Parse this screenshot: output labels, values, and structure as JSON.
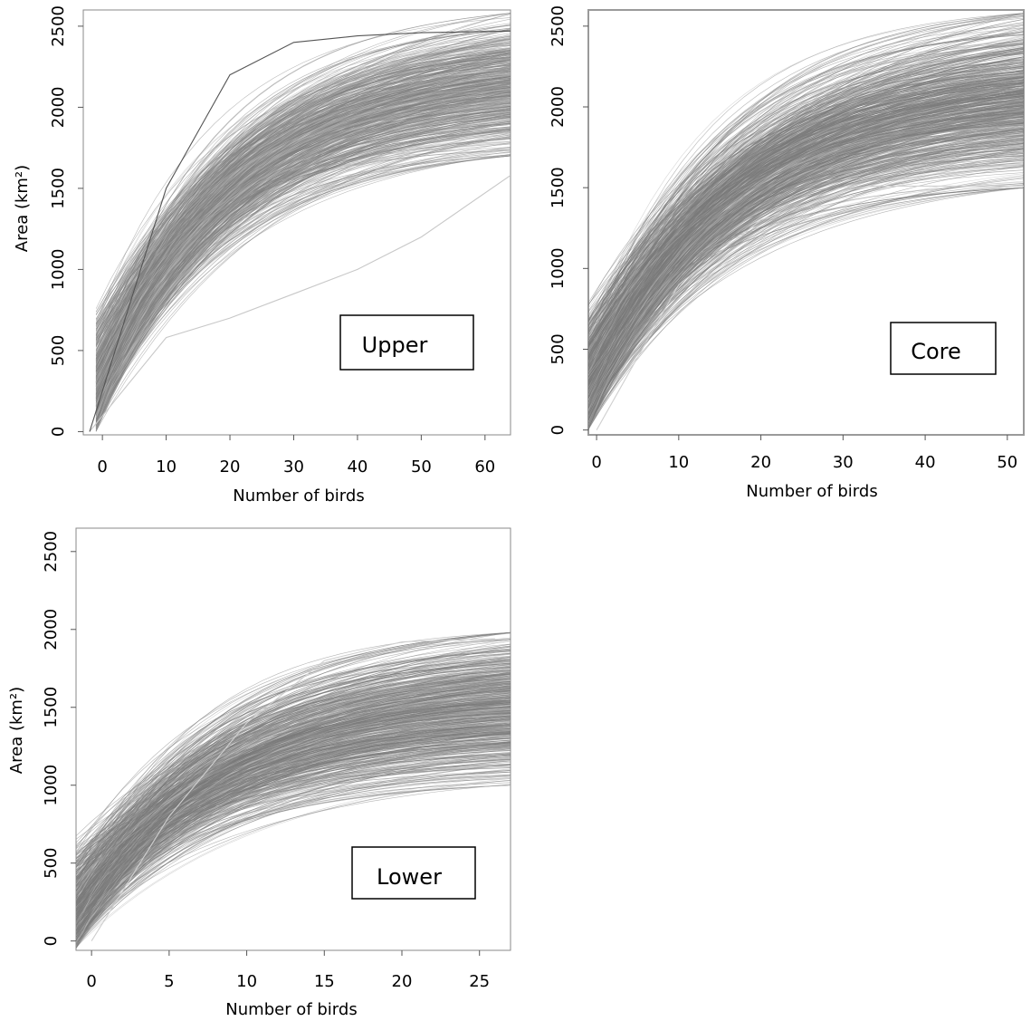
{
  "chart_data": [
    {
      "type": "line",
      "panel_label": "Upper",
      "xlabel": "Number of birds",
      "ylabel": "Area (km²)",
      "xlim": [
        -3,
        64
      ],
      "ylim": [
        -20,
        2600
      ],
      "xticks": [
        0,
        10,
        20,
        30,
        40,
        50,
        60
      ],
      "yticks": [
        0,
        500,
        1000,
        1500,
        2000,
        2500
      ],
      "n_curves": 600,
      "curves": {
        "shape": "saturating accumulation curves",
        "start_area_range": [
          0,
          800
        ],
        "end_area_range": [
          1700,
          2580
        ],
        "median_curve": [
          [
            0,
            420
          ],
          [
            10,
            1150
          ],
          [
            20,
            1600
          ],
          [
            30,
            1850
          ],
          [
            40,
            2000
          ],
          [
            50,
            2100
          ],
          [
            60,
            2160
          ]
        ],
        "outlier_curves": [
          {
            "points": [
              [
                -2,
                0
              ],
              [
                10,
                580
              ],
              [
                20,
                700
              ],
              [
                30,
                850
              ],
              [
                40,
                1000
              ],
              [
                50,
                1200
              ],
              [
                64,
                1580
              ]
            ],
            "color": "#c8c8c8"
          },
          {
            "points": [
              [
                -2,
                0
              ],
              [
                10,
                1500
              ],
              [
                20,
                2200
              ],
              [
                30,
                2400
              ],
              [
                40,
                2440
              ],
              [
                50,
                2460
              ],
              [
                64,
                2470
              ]
            ],
            "color": "#555555"
          }
        ]
      },
      "line_color": "#808080",
      "grid": false
    },
    {
      "type": "line",
      "panel_label": "Core",
      "xlabel": "Number of birds",
      "ylabel": "",
      "xlim": [
        -1,
        52
      ],
      "ylim": [
        -30,
        2600
      ],
      "xticks": [
        0,
        10,
        20,
        30,
        40,
        50
      ],
      "yticks": [
        0,
        500,
        1000,
        1500,
        2000,
        2500
      ],
      "n_curves": 700,
      "curves": {
        "shape": "saturating accumulation curves",
        "start_area_range": [
          0,
          820
        ],
        "end_area_range": [
          1500,
          2580
        ],
        "median_curve": [
          [
            0,
            350
          ],
          [
            10,
            1300
          ],
          [
            20,
            1750
          ],
          [
            30,
            1980
          ],
          [
            40,
            2100
          ],
          [
            50,
            2180
          ]
        ],
        "outlier_curves": [
          {
            "points": [
              [
                0,
                0
              ],
              [
                10,
                900
              ],
              [
                20,
                1300
              ],
              [
                30,
                1480
              ],
              [
                33,
                1510
              ],
              [
                52,
                1510
              ]
            ],
            "color": "#d0d0d0"
          }
        ]
      },
      "line_color": "#7a7a7a",
      "grid": false
    },
    {
      "type": "line",
      "panel_label": "Lower",
      "xlabel": "Number of birds",
      "ylabel": "Area (km²)",
      "xlim": [
        -1,
        27
      ],
      "ylim": [
        -60,
        2650
      ],
      "xticks": [
        0,
        5,
        10,
        15,
        20,
        25
      ],
      "yticks": [
        0,
        500,
        1000,
        1500,
        2000,
        2500
      ],
      "n_curves": 650,
      "curves": {
        "shape": "saturating accumulation curves",
        "start_area_range": [
          -50,
          680
        ],
        "end_area_range": [
          1000,
          1980
        ],
        "median_curve": [
          [
            0,
            250
          ],
          [
            5,
            750
          ],
          [
            10,
            1080
          ],
          [
            15,
            1280
          ],
          [
            20,
            1400
          ],
          [
            25,
            1480
          ]
        ],
        "outlier_curves": [
          {
            "points": [
              [
                0,
                0
              ],
              [
                5,
                800
              ],
              [
                10,
                1400
              ],
              [
                15,
                1800
              ],
              [
                20,
                1920
              ],
              [
                26,
                1940
              ]
            ],
            "color": "#cfcfcf"
          }
        ]
      },
      "line_color": "#7a7a7a",
      "grid": false
    }
  ]
}
